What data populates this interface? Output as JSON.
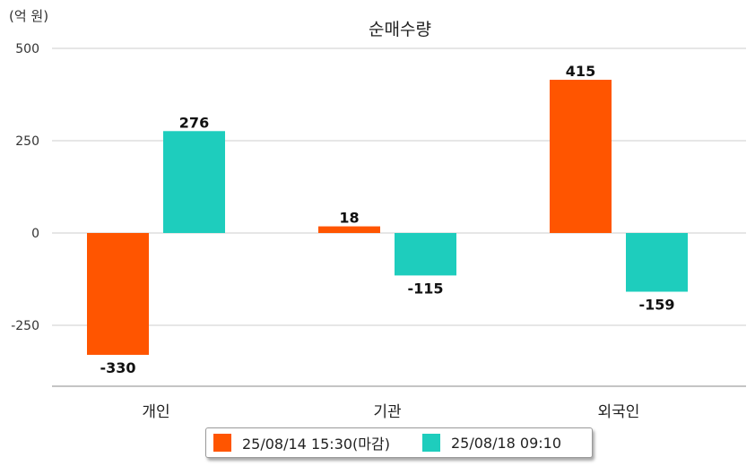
{
  "chart_data": {
    "type": "bar",
    "title": "순매수량",
    "unit_label": "(억 원)",
    "categories": [
      "개인",
      "기관",
      "외국인"
    ],
    "series": [
      {
        "name": "25/08/14 15:30(마감)",
        "values": [
          -330,
          18,
          415
        ],
        "color": "#ff5500"
      },
      {
        "name": "25/08/18 09:10",
        "values": [
          276,
          -115,
          -159
        ],
        "color": "#1ecdbd"
      }
    ],
    "data_labels": [
      [
        "-330",
        "18",
        "415"
      ],
      [
        "276",
        "-115",
        "-159"
      ]
    ],
    "yticks": [
      500,
      250,
      0,
      -250
    ],
    "ylim": [
      -415,
      500
    ],
    "grid": true,
    "legend_position": "bottom"
  }
}
